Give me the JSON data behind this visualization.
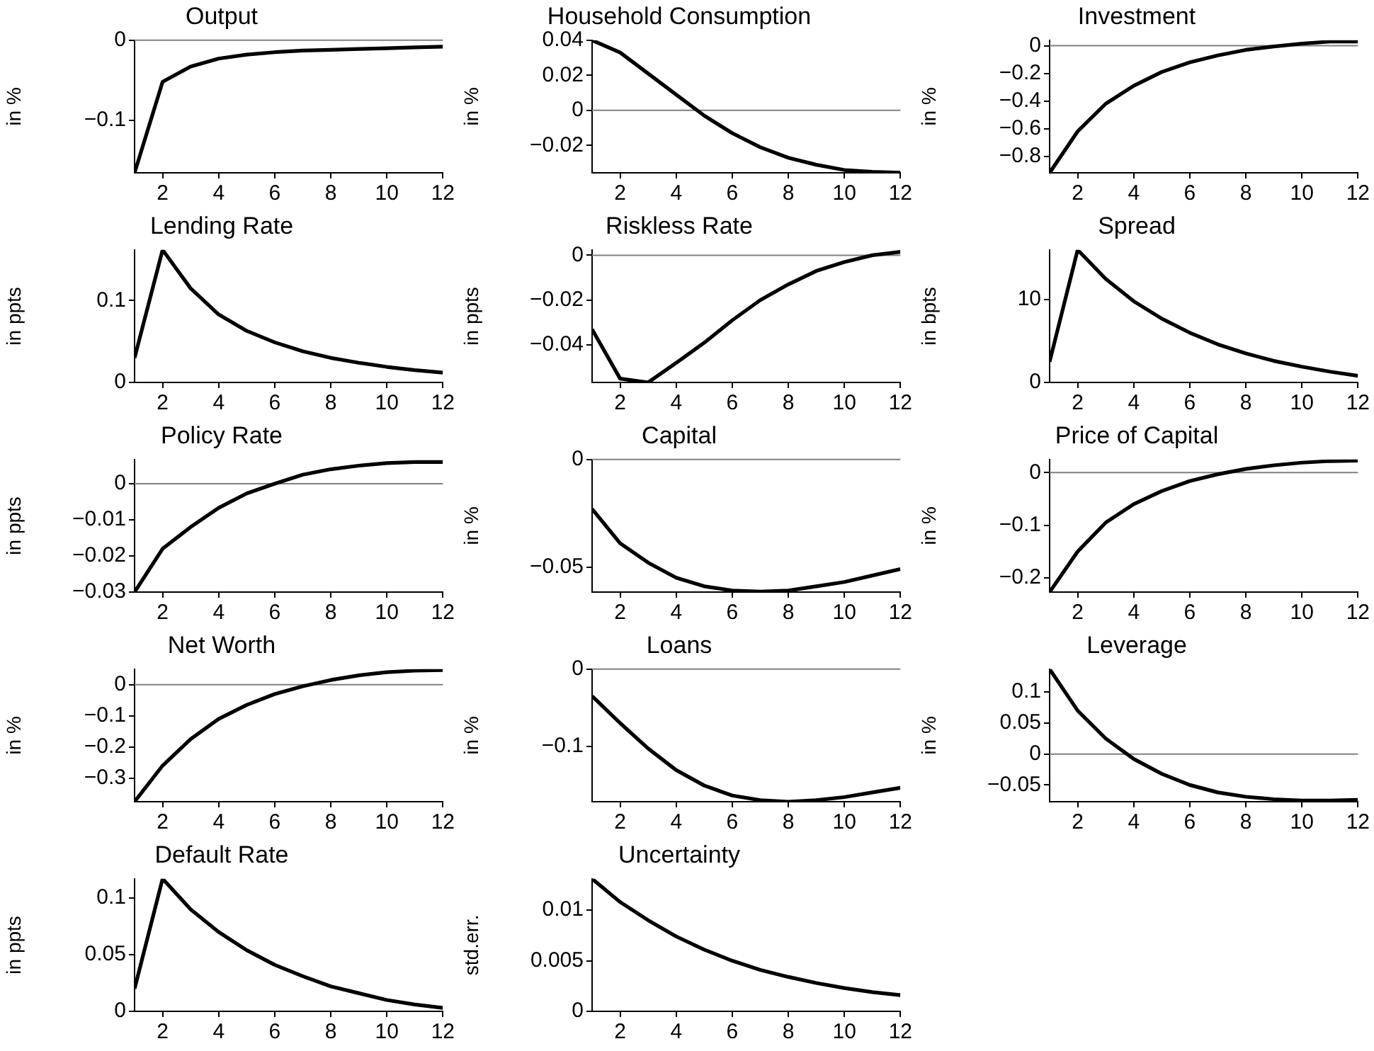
{
  "chart_data": [
    {
      "type": "line",
      "title": "Output",
      "ylabel": "in %",
      "x": [
        1,
        2,
        3,
        4,
        5,
        6,
        7,
        8,
        9,
        10,
        11,
        12
      ],
      "color": "#000000",
      "marker": "none",
      "line_style": "solid",
      "values": [
        -0.166,
        -0.052,
        -0.033,
        -0.023,
        -0.018,
        -0.015,
        -0.013,
        -0.012,
        -0.011,
        -0.01,
        -0.009,
        -0.008
      ],
      "xlim": [
        1,
        12
      ],
      "xticks": [
        2,
        4,
        6,
        8,
        10,
        12
      ],
      "ylim": [
        -0.166,
        0
      ],
      "yticks": [
        -0.1,
        0
      ],
      "ref_lines": [
        {
          "axis": "y",
          "value": 0,
          "color": "#808080"
        }
      ]
    },
    {
      "type": "line",
      "title": "Household Consumption",
      "ylabel": "in %",
      "x": [
        1,
        2,
        3,
        4,
        5,
        6,
        7,
        8,
        9,
        10,
        11,
        12
      ],
      "color": "#000000",
      "marker": "none",
      "line_style": "solid",
      "values": [
        0.04,
        0.033,
        0.021,
        0.009,
        -0.003,
        -0.013,
        -0.021,
        -0.027,
        -0.031,
        -0.034,
        -0.035,
        -0.0355
      ],
      "xlim": [
        1,
        12
      ],
      "xticks": [
        2,
        4,
        6,
        8,
        10,
        12
      ],
      "ylim": [
        -0.0356,
        0.04
      ],
      "yticks": [
        -0.02,
        0,
        0.02,
        0.04
      ],
      "ref_lines": [
        {
          "axis": "y",
          "value": 0,
          "color": "#808080"
        }
      ]
    },
    {
      "type": "line",
      "title": "Investment",
      "ylabel": "in %",
      "x": [
        1,
        2,
        3,
        4,
        5,
        6,
        7,
        8,
        9,
        10,
        11,
        12
      ],
      "color": "#000000",
      "marker": "none",
      "line_style": "solid",
      "values": [
        -0.92,
        -0.62,
        -0.42,
        -0.29,
        -0.19,
        -0.12,
        -0.07,
        -0.03,
        -0.005,
        0.015,
        0.03,
        0.03
      ],
      "xlim": [
        1,
        12
      ],
      "xticks": [
        2,
        4,
        6,
        8,
        10,
        12
      ],
      "ylim": [
        -0.92,
        0.04
      ],
      "yticks": [
        -0.8,
        -0.6,
        -0.4,
        -0.2,
        0
      ],
      "ref_lines": [
        {
          "axis": "y",
          "value": 0,
          "color": "#808080"
        }
      ]
    },
    {
      "type": "line",
      "title": "Lending Rate",
      "ylabel": "in ppts",
      "x": [
        1,
        2,
        3,
        4,
        5,
        6,
        7,
        8,
        9,
        10,
        11,
        12
      ],
      "color": "#000000",
      "marker": "none",
      "line_style": "solid",
      "values": [
        0.03,
        0.162,
        0.115,
        0.083,
        0.063,
        0.049,
        0.038,
        0.03,
        0.024,
        0.019,
        0.015,
        0.012
      ],
      "xlim": [
        1,
        12
      ],
      "xticks": [
        2,
        4,
        6,
        8,
        10,
        12
      ],
      "ylim": [
        0,
        0.162
      ],
      "yticks": [
        0,
        0.1
      ]
    },
    {
      "type": "line",
      "title": "Riskless Rate",
      "ylabel": "in ppts",
      "x": [
        1,
        2,
        3,
        4,
        5,
        6,
        7,
        8,
        9,
        10,
        11,
        12
      ],
      "color": "#000000",
      "marker": "none",
      "line_style": "solid",
      "values": [
        -0.033,
        -0.055,
        -0.0567,
        -0.048,
        -0.039,
        -0.029,
        -0.02,
        -0.013,
        -0.007,
        -0.003,
        0,
        0.0015
      ],
      "xlim": [
        1,
        12
      ],
      "xticks": [
        2,
        4,
        6,
        8,
        10,
        12
      ],
      "ylim": [
        -0.0567,
        0.0024
      ],
      "yticks": [
        -0.04,
        -0.02,
        0
      ],
      "ref_lines": [
        {
          "axis": "y",
          "value": 0,
          "color": "#808080"
        }
      ]
    },
    {
      "type": "line",
      "title": "Spread",
      "ylabel": "in bpts",
      "x": [
        1,
        2,
        3,
        4,
        5,
        6,
        7,
        8,
        9,
        10,
        11,
        12
      ],
      "color": "#000000",
      "marker": "none",
      "line_style": "solid",
      "values": [
        2.5,
        16,
        12.5,
        9.8,
        7.7,
        6,
        4.6,
        3.5,
        2.6,
        1.9,
        1.3,
        0.8
      ],
      "xlim": [
        1,
        12
      ],
      "xticks": [
        2,
        4,
        6,
        8,
        10,
        12
      ],
      "ylim": [
        0,
        16
      ],
      "yticks": [
        0,
        10
      ]
    },
    {
      "type": "line",
      "title": "Policy Rate",
      "ylabel": "in ppts",
      "x": [
        1,
        2,
        3,
        4,
        5,
        6,
        7,
        8,
        9,
        10,
        11,
        12
      ],
      "color": "#000000",
      "marker": "none",
      "line_style": "solid",
      "values": [
        -0.03,
        -0.018,
        -0.012,
        -0.0067,
        -0.0027,
        0,
        0.0025,
        0.004,
        0.005,
        0.0057,
        0.006,
        0.006
      ],
      "xlim": [
        1,
        12
      ],
      "xticks": [
        2,
        4,
        6,
        8,
        10,
        12
      ],
      "ylim": [
        -0.03,
        0.0067
      ],
      "yticks": [
        -0.03,
        -0.02,
        -0.01,
        0
      ],
      "ref_lines": [
        {
          "axis": "y",
          "value": 0,
          "color": "#808080"
        }
      ]
    },
    {
      "type": "line",
      "title": "Capital",
      "ylabel": "in %",
      "x": [
        1,
        2,
        3,
        4,
        5,
        6,
        7,
        8,
        9,
        10,
        11,
        12
      ],
      "color": "#000000",
      "marker": "none",
      "line_style": "solid",
      "values": [
        -0.023,
        -0.039,
        -0.048,
        -0.055,
        -0.059,
        -0.061,
        -0.0615,
        -0.061,
        -0.059,
        -0.057,
        -0.054,
        -0.051
      ],
      "xlim": [
        1,
        12
      ],
      "xticks": [
        2,
        4,
        6,
        8,
        10,
        12
      ],
      "ylim": [
        -0.0617,
        0
      ],
      "yticks": [
        -0.05,
        0
      ],
      "ref_lines": [
        {
          "axis": "y",
          "value": 0,
          "color": "#808080"
        }
      ]
    },
    {
      "type": "line",
      "title": "Price of Capital",
      "ylabel": "in %",
      "x": [
        1,
        2,
        3,
        4,
        5,
        6,
        7,
        8,
        9,
        10,
        11,
        12
      ],
      "color": "#000000",
      "marker": "none",
      "line_style": "solid",
      "values": [
        -0.227,
        -0.15,
        -0.095,
        -0.06,
        -0.035,
        -0.016,
        -0.003,
        0.007,
        0.014,
        0.019,
        0.022,
        0.023
      ],
      "xlim": [
        1,
        12
      ],
      "xticks": [
        2,
        4,
        6,
        8,
        10,
        12
      ],
      "ylim": [
        -0.227,
        0.025
      ],
      "yticks": [
        -0.2,
        -0.1,
        0
      ],
      "ref_lines": [
        {
          "axis": "y",
          "value": 0,
          "color": "#808080"
        }
      ]
    },
    {
      "type": "line",
      "title": "Net Worth",
      "ylabel": "in %",
      "x": [
        1,
        2,
        3,
        4,
        5,
        6,
        7,
        8,
        9,
        10,
        11,
        12
      ],
      "color": "#000000",
      "marker": "none",
      "line_style": "solid",
      "values": [
        -0.376,
        -0.26,
        -0.175,
        -0.11,
        -0.065,
        -0.03,
        -0.005,
        0.015,
        0.03,
        0.04,
        0.045,
        0.047
      ],
      "xlim": [
        1,
        12
      ],
      "xticks": [
        2,
        4,
        6,
        8,
        10,
        12
      ],
      "ylim": [
        -0.376,
        0.05
      ],
      "yticks": [
        -0.3,
        -0.2,
        -0.1,
        0
      ],
      "ref_lines": [
        {
          "axis": "y",
          "value": 0,
          "color": "#808080"
        }
      ]
    },
    {
      "type": "line",
      "title": "Loans",
      "ylabel": "in %",
      "x": [
        1,
        2,
        3,
        4,
        5,
        6,
        7,
        8,
        9,
        10,
        11,
        12
      ],
      "color": "#000000",
      "marker": "none",
      "line_style": "solid",
      "values": [
        -0.035,
        -0.07,
        -0.103,
        -0.131,
        -0.151,
        -0.164,
        -0.17,
        -0.172,
        -0.17,
        -0.166,
        -0.16,
        -0.154
      ],
      "xlim": [
        1,
        12
      ],
      "xticks": [
        2,
        4,
        6,
        8,
        10,
        12
      ],
      "ylim": [
        -0.172,
        0
      ],
      "yticks": [
        -0.1,
        0
      ],
      "ref_lines": [
        {
          "axis": "y",
          "value": 0,
          "color": "#808080"
        }
      ]
    },
    {
      "type": "line",
      "title": "Leverage",
      "ylabel": "in %",
      "x": [
        1,
        2,
        3,
        4,
        5,
        6,
        7,
        8,
        9,
        10,
        11,
        12
      ],
      "color": "#000000",
      "marker": "none",
      "line_style": "solid",
      "values": [
        0.137,
        0.07,
        0.025,
        -0.008,
        -0.032,
        -0.05,
        -0.062,
        -0.069,
        -0.073,
        -0.075,
        -0.075,
        -0.074
      ],
      "xlim": [
        1,
        12
      ],
      "xticks": [
        2,
        4,
        6,
        8,
        10,
        12
      ],
      "ylim": [
        -0.077,
        0.137
      ],
      "yticks": [
        -0.05,
        0,
        0.05,
        0.1
      ],
      "ref_lines": [
        {
          "axis": "y",
          "value": 0,
          "color": "#808080"
        }
      ]
    },
    {
      "type": "line",
      "title": "Default Rate",
      "ylabel": "in ppts",
      "x": [
        1,
        2,
        3,
        4,
        5,
        6,
        7,
        8,
        9,
        10,
        11,
        12
      ],
      "color": "#000000",
      "marker": "none",
      "line_style": "solid",
      "values": [
        0.02,
        0.117,
        0.09,
        0.07,
        0.054,
        0.041,
        0.031,
        0.022,
        0.016,
        0.01,
        0.006,
        0.003
      ],
      "xlim": [
        1,
        12
      ],
      "xticks": [
        2,
        4,
        6,
        8,
        10,
        12
      ],
      "ylim": [
        0,
        0.117
      ],
      "yticks": [
        0,
        0.05,
        0.1
      ]
    },
    {
      "type": "line",
      "title": "Uncertainty",
      "ylabel": "std.err.",
      "x": [
        1,
        2,
        3,
        4,
        5,
        6,
        7,
        8,
        9,
        10,
        11,
        12
      ],
      "color": "#000000",
      "marker": "none",
      "line_style": "solid",
      "values": [
        0.0131,
        0.0108,
        0.009,
        0.0074,
        0.0061,
        0.005,
        0.0041,
        0.0034,
        0.0028,
        0.0023,
        0.0019,
        0.0016
      ],
      "xlim": [
        1,
        12
      ],
      "xticks": [
        2,
        4,
        6,
        8,
        10,
        12
      ],
      "ylim": [
        0,
        0.0131
      ],
      "yticks": [
        0,
        0.005,
        0.01
      ]
    }
  ]
}
